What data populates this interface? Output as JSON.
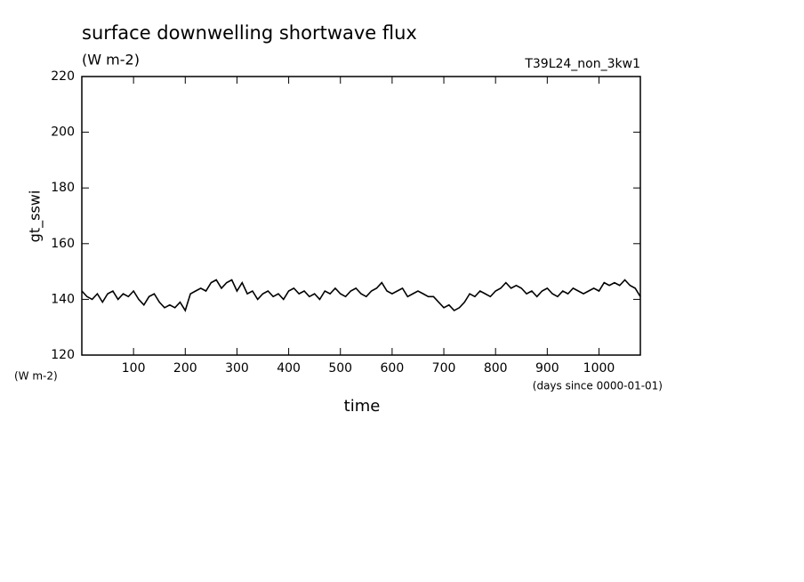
{
  "chart_data": {
    "type": "line",
    "title": "surface downwelling shortwave flux",
    "subtitle": "(W m-2)",
    "run_label": "T39L24_non_3kw1",
    "y_label": "gt_sswi",
    "y_units": "(W m-2)",
    "x_label": "time",
    "x_units": "(days since 0000-01-01)",
    "xlim": [
      0,
      1080
    ],
    "ylim": [
      120,
      220
    ],
    "xticks": [
      100,
      200,
      300,
      400,
      500,
      600,
      700,
      800,
      900,
      1000
    ],
    "yticks": [
      120,
      140,
      160,
      180,
      200,
      220
    ],
    "grid": false,
    "x": [
      0,
      10,
      20,
      30,
      40,
      50,
      60,
      70,
      80,
      90,
      100,
      110,
      120,
      130,
      140,
      150,
      160,
      170,
      180,
      190,
      200,
      210,
      220,
      230,
      240,
      250,
      260,
      270,
      280,
      290,
      300,
      310,
      320,
      330,
      340,
      350,
      360,
      370,
      380,
      390,
      400,
      410,
      420,
      430,
      440,
      450,
      460,
      470,
      480,
      490,
      500,
      510,
      520,
      530,
      540,
      550,
      560,
      570,
      580,
      590,
      600,
      610,
      620,
      630,
      640,
      650,
      660,
      670,
      680,
      690,
      700,
      710,
      720,
      730,
      740,
      750,
      760,
      770,
      780,
      790,
      800,
      810,
      820,
      830,
      840,
      850,
      860,
      870,
      880,
      890,
      900,
      910,
      920,
      930,
      940,
      950,
      960,
      970,
      980,
      990,
      1000,
      1010,
      1020,
      1030,
      1040,
      1050,
      1060,
      1070,
      1080
    ],
    "series": [
      {
        "color": "#000000",
        "values": [
          143,
          141,
          140,
          142,
          139,
          142,
          143,
          140,
          142,
          141,
          143,
          140,
          138,
          141,
          142,
          139,
          137,
          138,
          137,
          139,
          136,
          142,
          143,
          144,
          143,
          146,
          147,
          144,
          146,
          147,
          143,
          146,
          142,
          143,
          140,
          142,
          143,
          141,
          142,
          140,
          143,
          144,
          142,
          143,
          141,
          142,
          140,
          143,
          142,
          144,
          142,
          141,
          143,
          144,
          142,
          141,
          143,
          144,
          146,
          143,
          142,
          143,
          144,
          141,
          142,
          143,
          142,
          141,
          141,
          139,
          137,
          138,
          136,
          137,
          139,
          142,
          141,
          143,
          142,
          141,
          143,
          144,
          146,
          144,
          145,
          144,
          142,
          143,
          141,
          143,
          144,
          142,
          141,
          143,
          142,
          144,
          143,
          142,
          143,
          144,
          143,
          146,
          145,
          146,
          145,
          147,
          145,
          144,
          141
        ]
      }
    ]
  }
}
